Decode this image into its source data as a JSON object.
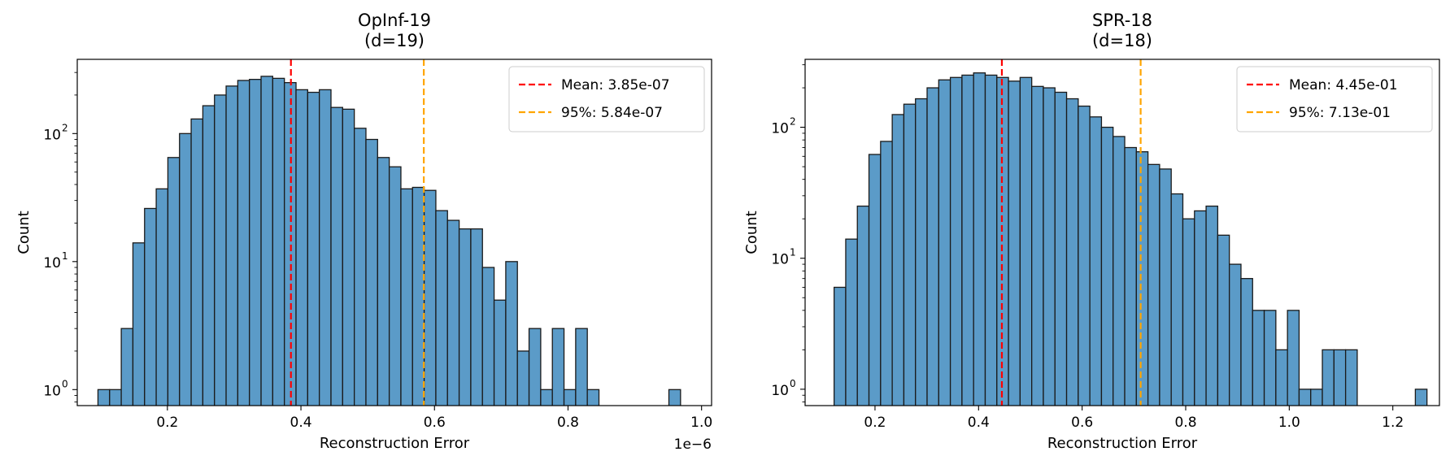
{
  "chart_data": [
    {
      "type": "bar",
      "title": "OpInf-19\n(d=19)",
      "xlabel": "Reconstruction Error",
      "ylabel": "Count",
      "offset_text": "1e−6",
      "yscale": "log",
      "xlim": [
        0.065,
        1.015
      ],
      "ylim": [
        0.75,
        380
      ],
      "xticks": [
        0.2,
        0.4,
        0.6,
        0.8,
        1.0
      ],
      "xtick_labels": [
        "0.2",
        "0.4",
        "0.6",
        "0.8",
        "1.0"
      ],
      "yticks": [
        1,
        10,
        100
      ],
      "ytick_labels": [
        "10",
        "10",
        "10"
      ],
      "ytick_exponents": [
        "0",
        "1",
        "2"
      ],
      "bin_start": 0.096,
      "bin_width": 0.01745,
      "values": [
        1,
        1,
        3,
        14,
        26,
        37,
        65,
        100,
        130,
        165,
        200,
        235,
        260,
        265,
        280,
        270,
        250,
        220,
        210,
        220,
        160,
        155,
        110,
        90,
        65,
        55,
        37,
        38,
        36,
        25,
        21,
        18,
        18,
        9,
        5,
        10,
        2,
        3,
        1,
        3,
        1,
        3,
        1,
        0,
        0,
        0,
        0,
        0,
        0,
        1
      ],
      "grid": false,
      "legend_position": "upper right",
      "vlines": [
        {
          "x": 0.385,
          "label": "Mean: 3.85e-07",
          "color": "#ff0000"
        },
        {
          "x": 0.584,
          "label": "95%: 5.84e-07",
          "color": "#ffa500"
        }
      ],
      "bar_color": "#5b9bc8",
      "edge_color": "#1a1a1a"
    },
    {
      "type": "bar",
      "title": "SPR-18\n(d=18)",
      "xlabel": "Reconstruction Error",
      "ylabel": "Count",
      "offset_text": "",
      "yscale": "log",
      "xlim": [
        0.065,
        1.29
      ],
      "ylim": [
        0.75,
        330
      ],
      "xticks": [
        0.2,
        0.4,
        0.6,
        0.8,
        1.0,
        1.2
      ],
      "xtick_labels": [
        "0.2",
        "0.4",
        "0.6",
        "0.8",
        "1.0",
        "1.2"
      ],
      "yticks": [
        1,
        10,
        100
      ],
      "ytick_labels": [
        "10",
        "10",
        "10"
      ],
      "ytick_exponents": [
        "0",
        "1",
        "2"
      ],
      "bin_start": 0.121,
      "bin_width": 0.02245,
      "values": [
        6,
        14,
        25,
        62,
        78,
        125,
        150,
        165,
        200,
        230,
        240,
        250,
        260,
        250,
        240,
        225,
        240,
        205,
        200,
        185,
        165,
        145,
        120,
        100,
        85,
        70,
        65,
        52,
        48,
        31,
        20,
        23,
        25,
        15,
        9,
        7,
        4,
        4,
        2,
        4,
        1,
        1,
        2,
        2,
        2,
        0,
        0,
        0,
        0,
        0,
        1
      ],
      "grid": false,
      "legend_position": "upper right",
      "vlines": [
        {
          "x": 0.445,
          "label": "Mean: 4.45e-01",
          "color": "#ff0000"
        },
        {
          "x": 0.713,
          "label": "95%: 7.13e-01",
          "color": "#ffa500"
        }
      ],
      "bar_color": "#5b9bc8",
      "edge_color": "#1a1a1a"
    }
  ]
}
